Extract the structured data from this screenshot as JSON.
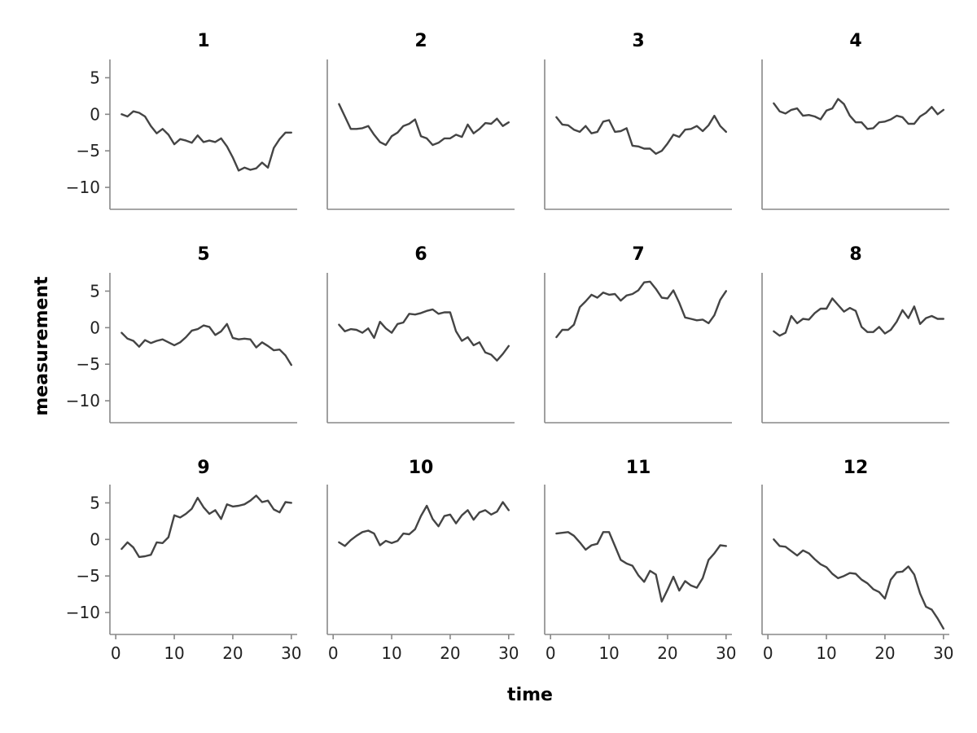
{
  "chart_data": {
    "type": "line",
    "layout": "facet-grid",
    "xlabel": "time",
    "ylabel": "measurement",
    "xlim": [
      -1,
      31
    ],
    "ylim": [
      -13,
      7.5
    ],
    "xticks": [
      0,
      10,
      20,
      30
    ],
    "yticks": [
      5,
      0,
      -5,
      -10
    ],
    "grid": false,
    "line_color": "#444444",
    "panels": [
      {
        "title": "1",
        "x": [
          1,
          2,
          3,
          4,
          5,
          6,
          7,
          8,
          9,
          10,
          11,
          12,
          13,
          14,
          15,
          16,
          17,
          18,
          19,
          20,
          21,
          22,
          23,
          24,
          25,
          26,
          27,
          28,
          29,
          30
        ],
        "values": [
          0.0,
          -0.3,
          0.4,
          0.2,
          -0.3,
          -1.6,
          -2.6,
          -2.0,
          -2.8,
          -4.1,
          -3.4,
          -3.6,
          -3.9,
          -2.9,
          -3.8,
          -3.6,
          -3.8,
          -3.3,
          -4.4,
          -5.9,
          -7.7,
          -7.3,
          -7.6,
          -7.4,
          -6.6,
          -7.3,
          -4.6,
          -3.4,
          -2.5,
          -2.5
        ]
      },
      {
        "title": "2",
        "x": [
          1,
          2,
          3,
          4,
          5,
          6,
          7,
          8,
          9,
          10,
          11,
          12,
          13,
          14,
          15,
          16,
          17,
          18,
          19,
          20,
          21,
          22,
          23,
          24,
          25,
          26,
          27,
          28,
          29,
          30
        ],
        "values": [
          1.4,
          -0.3,
          -2.0,
          -2.0,
          -1.9,
          -1.6,
          -2.8,
          -3.8,
          -4.2,
          -3.0,
          -2.5,
          -1.6,
          -1.3,
          -0.7,
          -3.0,
          -3.3,
          -4.2,
          -3.9,
          -3.3,
          -3.3,
          -2.8,
          -3.1,
          -1.4,
          -2.6,
          -2.0,
          -1.2,
          -1.3,
          -0.6,
          -1.6,
          -1.1
        ]
      },
      {
        "title": "3",
        "x": [
          1,
          2,
          3,
          4,
          5,
          6,
          7,
          8,
          9,
          10,
          11,
          12,
          13,
          14,
          15,
          16,
          17,
          18,
          19,
          20,
          21,
          22,
          23,
          24,
          25,
          26,
          27,
          28,
          29,
          30
        ],
        "values": [
          -0.4,
          -1.4,
          -1.5,
          -2.1,
          -2.4,
          -1.6,
          -2.6,
          -2.4,
          -1.0,
          -0.8,
          -2.4,
          -2.3,
          -1.9,
          -4.3,
          -4.4,
          -4.7,
          -4.7,
          -5.4,
          -5.0,
          -4.0,
          -2.8,
          -3.1,
          -2.1,
          -2.0,
          -1.6,
          -2.3,
          -1.5,
          -0.2,
          -1.6,
          -2.4
        ]
      },
      {
        "title": "4",
        "x": [
          1,
          2,
          3,
          4,
          5,
          6,
          7,
          8,
          9,
          10,
          11,
          12,
          13,
          14,
          15,
          16,
          17,
          18,
          19,
          20,
          21,
          22,
          23,
          24,
          25,
          26,
          27,
          28,
          29,
          30
        ],
        "values": [
          1.5,
          0.4,
          0.1,
          0.6,
          0.8,
          -0.2,
          -0.1,
          -0.3,
          -0.7,
          0.5,
          0.8,
          2.1,
          1.4,
          -0.2,
          -1.1,
          -1.1,
          -2.0,
          -1.9,
          -1.1,
          -1.0,
          -0.7,
          -0.2,
          -0.4,
          -1.3,
          -1.3,
          -0.3,
          0.2,
          1.0,
          0.0,
          0.6
        ]
      },
      {
        "title": "5",
        "x": [
          1,
          2,
          3,
          4,
          5,
          6,
          7,
          8,
          9,
          10,
          11,
          12,
          13,
          14,
          15,
          16,
          17,
          18,
          19,
          20,
          21,
          22,
          23,
          24,
          25,
          26,
          27,
          28,
          29,
          30
        ],
        "values": [
          -0.7,
          -1.5,
          -1.8,
          -2.6,
          -1.7,
          -2.1,
          -1.8,
          -1.6,
          -2.0,
          -2.4,
          -2.0,
          -1.3,
          -0.4,
          -0.2,
          0.3,
          0.1,
          -1.0,
          -0.5,
          0.5,
          -1.4,
          -1.6,
          -1.5,
          -1.6,
          -2.7,
          -2.0,
          -2.5,
          -3.1,
          -3.0,
          -3.8,
          -5.1
        ]
      },
      {
        "title": "6",
        "x": [
          1,
          2,
          3,
          4,
          5,
          6,
          7,
          8,
          9,
          10,
          11,
          12,
          13,
          14,
          15,
          16,
          17,
          18,
          19,
          20,
          21,
          22,
          23,
          24,
          25,
          26,
          27,
          28,
          29,
          30
        ],
        "values": [
          0.4,
          -0.5,
          -0.2,
          -0.3,
          -0.7,
          -0.1,
          -1.4,
          0.8,
          -0.1,
          -0.7,
          0.5,
          0.7,
          1.9,
          1.8,
          2.0,
          2.3,
          2.5,
          1.9,
          2.1,
          2.1,
          -0.5,
          -1.8,
          -1.3,
          -2.4,
          -2.0,
          -3.4,
          -3.7,
          -4.5,
          -3.6,
          -2.5
        ]
      },
      {
        "title": "7",
        "x": [
          1,
          2,
          3,
          4,
          5,
          6,
          7,
          8,
          9,
          10,
          11,
          12,
          13,
          14,
          15,
          16,
          17,
          18,
          19,
          20,
          21,
          22,
          23,
          24,
          25,
          26,
          27,
          28,
          29,
          30
        ],
        "values": [
          -1.3,
          -0.3,
          -0.3,
          0.4,
          2.8,
          3.6,
          4.5,
          4.1,
          4.8,
          4.5,
          4.6,
          3.7,
          4.4,
          4.6,
          5.1,
          6.2,
          6.3,
          5.3,
          4.1,
          4.0,
          5.1,
          3.4,
          1.4,
          1.2,
          1.0,
          1.1,
          0.6,
          1.7,
          3.8,
          5.0
        ]
      },
      {
        "title": "8",
        "x": [
          1,
          2,
          3,
          4,
          5,
          6,
          7,
          8,
          9,
          10,
          11,
          12,
          13,
          14,
          15,
          16,
          17,
          18,
          19,
          20,
          21,
          22,
          23,
          24,
          25,
          26,
          27,
          28,
          29,
          30
        ],
        "values": [
          -0.5,
          -1.1,
          -0.7,
          1.6,
          0.6,
          1.2,
          1.1,
          2.0,
          2.6,
          2.6,
          4.0,
          3.1,
          2.2,
          2.7,
          2.3,
          0.1,
          -0.6,
          -0.6,
          0.1,
          -0.8,
          -0.3,
          0.8,
          2.4,
          1.3,
          2.9,
          0.5,
          1.3,
          1.6,
          1.2,
          1.2
        ]
      },
      {
        "title": "9",
        "x": [
          1,
          2,
          3,
          4,
          5,
          6,
          7,
          8,
          9,
          10,
          11,
          12,
          13,
          14,
          15,
          16,
          17,
          18,
          19,
          20,
          21,
          22,
          23,
          24,
          25,
          26,
          27,
          28,
          29,
          30
        ],
        "values": [
          -1.3,
          -0.4,
          -1.1,
          -2.4,
          -2.3,
          -2.1,
          -0.4,
          -0.5,
          0.3,
          3.3,
          3.0,
          3.5,
          4.2,
          5.7,
          4.4,
          3.5,
          4.0,
          2.8,
          4.8,
          4.5,
          4.6,
          4.8,
          5.3,
          6.0,
          5.1,
          5.3,
          4.1,
          3.7,
          5.1,
          5.0
        ]
      },
      {
        "title": "10",
        "x": [
          1,
          2,
          3,
          4,
          5,
          6,
          7,
          8,
          9,
          10,
          11,
          12,
          13,
          14,
          15,
          16,
          17,
          18,
          19,
          20,
          21,
          22,
          23,
          24,
          25,
          26,
          27,
          28,
          29,
          30
        ],
        "values": [
          -0.4,
          -0.9,
          -0.1,
          0.5,
          1.0,
          1.2,
          0.8,
          -0.8,
          -0.2,
          -0.5,
          -0.2,
          0.8,
          0.7,
          1.4,
          3.2,
          4.6,
          2.8,
          1.8,
          3.2,
          3.4,
          2.2,
          3.3,
          4.0,
          2.7,
          3.7,
          4.0,
          3.4,
          3.8,
          5.1,
          4.0
        ]
      },
      {
        "title": "11",
        "x": [
          1,
          2,
          3,
          4,
          5,
          6,
          7,
          8,
          9,
          10,
          11,
          12,
          13,
          14,
          15,
          16,
          17,
          18,
          19,
          20,
          21,
          22,
          23,
          24,
          25,
          26,
          27,
          28,
          29,
          30
        ],
        "values": [
          0.8,
          0.9,
          1.0,
          0.5,
          -0.4,
          -1.4,
          -0.8,
          -0.6,
          1.0,
          1.0,
          -0.9,
          -2.8,
          -3.3,
          -3.6,
          -4.9,
          -5.8,
          -4.3,
          -4.8,
          -8.5,
          -6.9,
          -5.1,
          -7.0,
          -5.7,
          -6.3,
          -6.6,
          -5.3,
          -2.8,
          -1.9,
          -0.8,
          -0.9
        ]
      },
      {
        "title": "12",
        "x": [
          1,
          2,
          3,
          4,
          5,
          6,
          7,
          8,
          9,
          10,
          11,
          12,
          13,
          14,
          15,
          16,
          17,
          18,
          19,
          20,
          21,
          22,
          23,
          24,
          25,
          26,
          27,
          28,
          29,
          30
        ],
        "values": [
          0.0,
          -0.9,
          -1.0,
          -1.6,
          -2.2,
          -1.5,
          -1.9,
          -2.7,
          -3.4,
          -3.8,
          -4.7,
          -5.3,
          -5.0,
          -4.6,
          -4.7,
          -5.5,
          -6.0,
          -6.8,
          -7.2,
          -8.1,
          -5.5,
          -4.5,
          -4.4,
          -3.7,
          -4.8,
          -7.4,
          -9.2,
          -9.6,
          -10.8,
          -12.2
        ]
      }
    ]
  }
}
